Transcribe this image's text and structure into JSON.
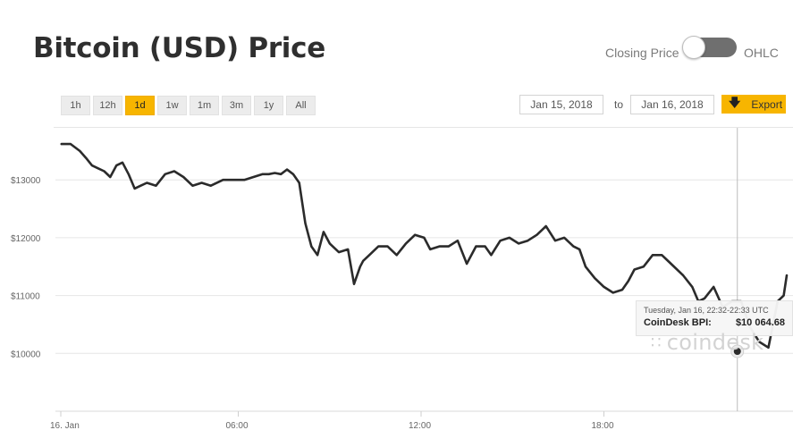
{
  "page": {
    "title": "Bitcoin (USD) Price",
    "toggle": {
      "left_label": "Closing Price",
      "right_label": "OHLC"
    },
    "ranges": [
      {
        "label": "1h",
        "active": false
      },
      {
        "label": "12h",
        "active": false
      },
      {
        "label": "1d",
        "active": true
      },
      {
        "label": "1w",
        "active": false
      },
      {
        "label": "1m",
        "active": false
      },
      {
        "label": "3m",
        "active": false
      },
      {
        "label": "1y",
        "active": false
      },
      {
        "label": "All",
        "active": false
      }
    ],
    "date_from": "Jan 15, 2018",
    "to_label": "to",
    "date_to": "Jan 16, 2018",
    "export_label": "Export",
    "tooltip": {
      "time": "Tuesday, Jan 16, 22:32-22:33 UTC",
      "label": "CoinDesk BPI:",
      "value": "$10 064.68"
    },
    "watermark": "coindesk",
    "colors": {
      "accent": "#f7b500",
      "line": "#2b2b2b",
      "grid": "#e6e6e6"
    }
  },
  "chart_data": {
    "type": "line",
    "title": "Bitcoin (USD) Price",
    "xlabel": "",
    "ylabel": "",
    "x_ticks": [
      "16. Jan",
      "06:00",
      "12:00",
      "18:00"
    ],
    "x_tick_hours": [
      0,
      6,
      12,
      18
    ],
    "xlim_hours": [
      0.2,
      24.0
    ],
    "y_ticks": [
      "$10000",
      "$11000",
      "$12000",
      "$13000"
    ],
    "y_tick_values": [
      10000,
      11000,
      12000,
      13000
    ],
    "ylim": [
      9000,
      13900
    ],
    "grid": true,
    "series": [
      {
        "hours": [
          0.2,
          0.5,
          0.8,
          1.0,
          1.2,
          1.4,
          1.6,
          1.8,
          2.0,
          2.2,
          2.4,
          2.6,
          2.8,
          3.0,
          3.3,
          3.6,
          3.9,
          4.2,
          4.5,
          4.8,
          5.1,
          5.5,
          5.9,
          6.2,
          6.5,
          6.8,
          7.0,
          7.2,
          7.4,
          7.6,
          7.8,
          8.0,
          8.1,
          8.2,
          8.3,
          8.4,
          8.6,
          8.8,
          9.0,
          9.3,
          9.6,
          9.8,
          10.0,
          10.1,
          10.3,
          10.6,
          10.9,
          11.2,
          11.5,
          11.8,
          12.1,
          12.3,
          12.6,
          12.9,
          13.2,
          13.5,
          13.8,
          14.1,
          14.3,
          14.6,
          14.9,
          15.2,
          15.5,
          15.8,
          16.1,
          16.4,
          16.7,
          17.0,
          17.2,
          17.4,
          17.7,
          18.0,
          18.3,
          18.6,
          18.8,
          19.0,
          19.3,
          19.6,
          19.9,
          20.2,
          20.6,
          20.9,
          21.1,
          21.3,
          21.6,
          21.9,
          22.2,
          22.5,
          22.8,
          23.1,
          23.4,
          23.7,
          23.9,
          24.0
        ],
        "values": [
          13620,
          13620,
          13500,
          13380,
          13250,
          13200,
          13150,
          13050,
          13250,
          13300,
          13100,
          12850,
          12900,
          12950,
          12900,
          13100,
          13150,
          13050,
          12900,
          12950,
          12900,
          13000,
          13000,
          13000,
          13050,
          13100,
          13100,
          13120,
          13100,
          13180,
          13100,
          12950,
          12600,
          12250,
          12050,
          11850,
          11700,
          12100,
          11900,
          11750,
          11800,
          11200,
          11500,
          11600,
          11700,
          11850,
          11850,
          11700,
          11900,
          12050,
          12000,
          11800,
          11850,
          11850,
          11950,
          11550,
          11850,
          11850,
          11700,
          11950,
          12000,
          11900,
          11950,
          12050,
          12200,
          11950,
          12000,
          11850,
          11800,
          11500,
          11300,
          11150,
          11050,
          11100,
          11250,
          11450,
          11500,
          11700,
          11700,
          11550,
          11350,
          11150,
          10900,
          10950,
          11150,
          10800,
          10900,
          10900,
          10450,
          10200,
          10100,
          10900,
          11000,
          11350
        ]
      }
    ],
    "marker": {
      "hour": 22.32,
      "value": 10064.68
    }
  }
}
